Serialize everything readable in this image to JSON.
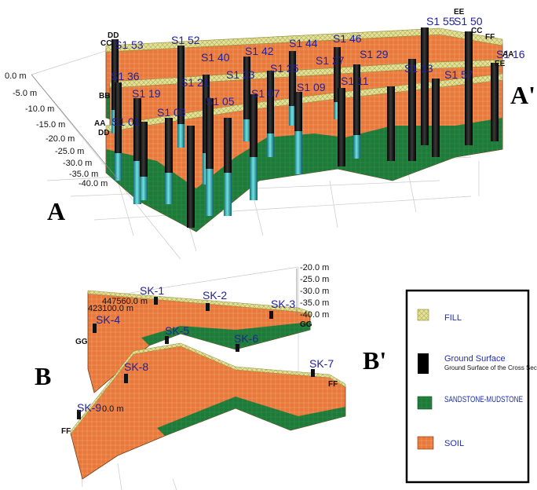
{
  "panel_a": {
    "letter": "A",
    "letter_prime": "A'",
    "depth_ticks": [
      "0.0 m",
      "-5.0 m",
      "-10.0 m",
      "-15.0 m",
      "-20.0 m",
      "-25.0 m",
      "-30.0 m",
      "-35.0 m",
      "-40.0 m"
    ],
    "section_marks": [
      "DD",
      "CC",
      "BB",
      "AA",
      "DD",
      "EE",
      "CC",
      "FF",
      "AA",
      "EE"
    ],
    "boreholes": [
      "S1 53",
      "S1 52",
      "S1 40",
      "S1 42",
      "S1 44",
      "S1 46",
      "S1 55",
      "S1 50",
      "S1 36",
      "S1 21",
      "S1 23",
      "S1 25",
      "S1 27",
      "S1 29",
      "S1 19",
      "S1 05",
      "S1 07",
      "S1 09",
      "S1 11",
      "S1 01",
      "S1 03",
      "S1 13",
      "S1 57",
      "S1 16"
    ]
  },
  "panel_b": {
    "letter": "B",
    "letter_prime": "B'",
    "depth_ticks": [
      "-20.0 m",
      "-25.0 m",
      "-30.0 m",
      "-35.0 m",
      "-40.0 m"
    ],
    "coords": [
      "447560.0 m",
      "423100.0 m",
      "0.0 m"
    ],
    "section_marks": [
      "GG",
      "GG",
      "FF",
      "FF"
    ],
    "boreholes": [
      "SK-1",
      "SK-2",
      "SK-3",
      "SK-4",
      "SK-5",
      "SK-6",
      "SK-7",
      "SK-8",
      "SK-9"
    ]
  },
  "legend": {
    "items": [
      {
        "label": "FILL",
        "sub": "",
        "pattern": "fill"
      },
      {
        "label": "Ground Surface",
        "sub": "Ground Surface of the Cross Section",
        "pattern": "ground"
      },
      {
        "label": "SANDSTONE-MUDSTONE",
        "sub": "",
        "pattern": "sand"
      },
      {
        "label": "SOIL",
        "sub": "",
        "pattern": "soil"
      }
    ]
  },
  "colors": {
    "soil": "#e8793a",
    "sandstone": "#1f7a3a",
    "fill": "#dedc8a",
    "borehole": "#0a0a0a",
    "borehole_lower": "#36b8bd",
    "label": "#22229a"
  }
}
